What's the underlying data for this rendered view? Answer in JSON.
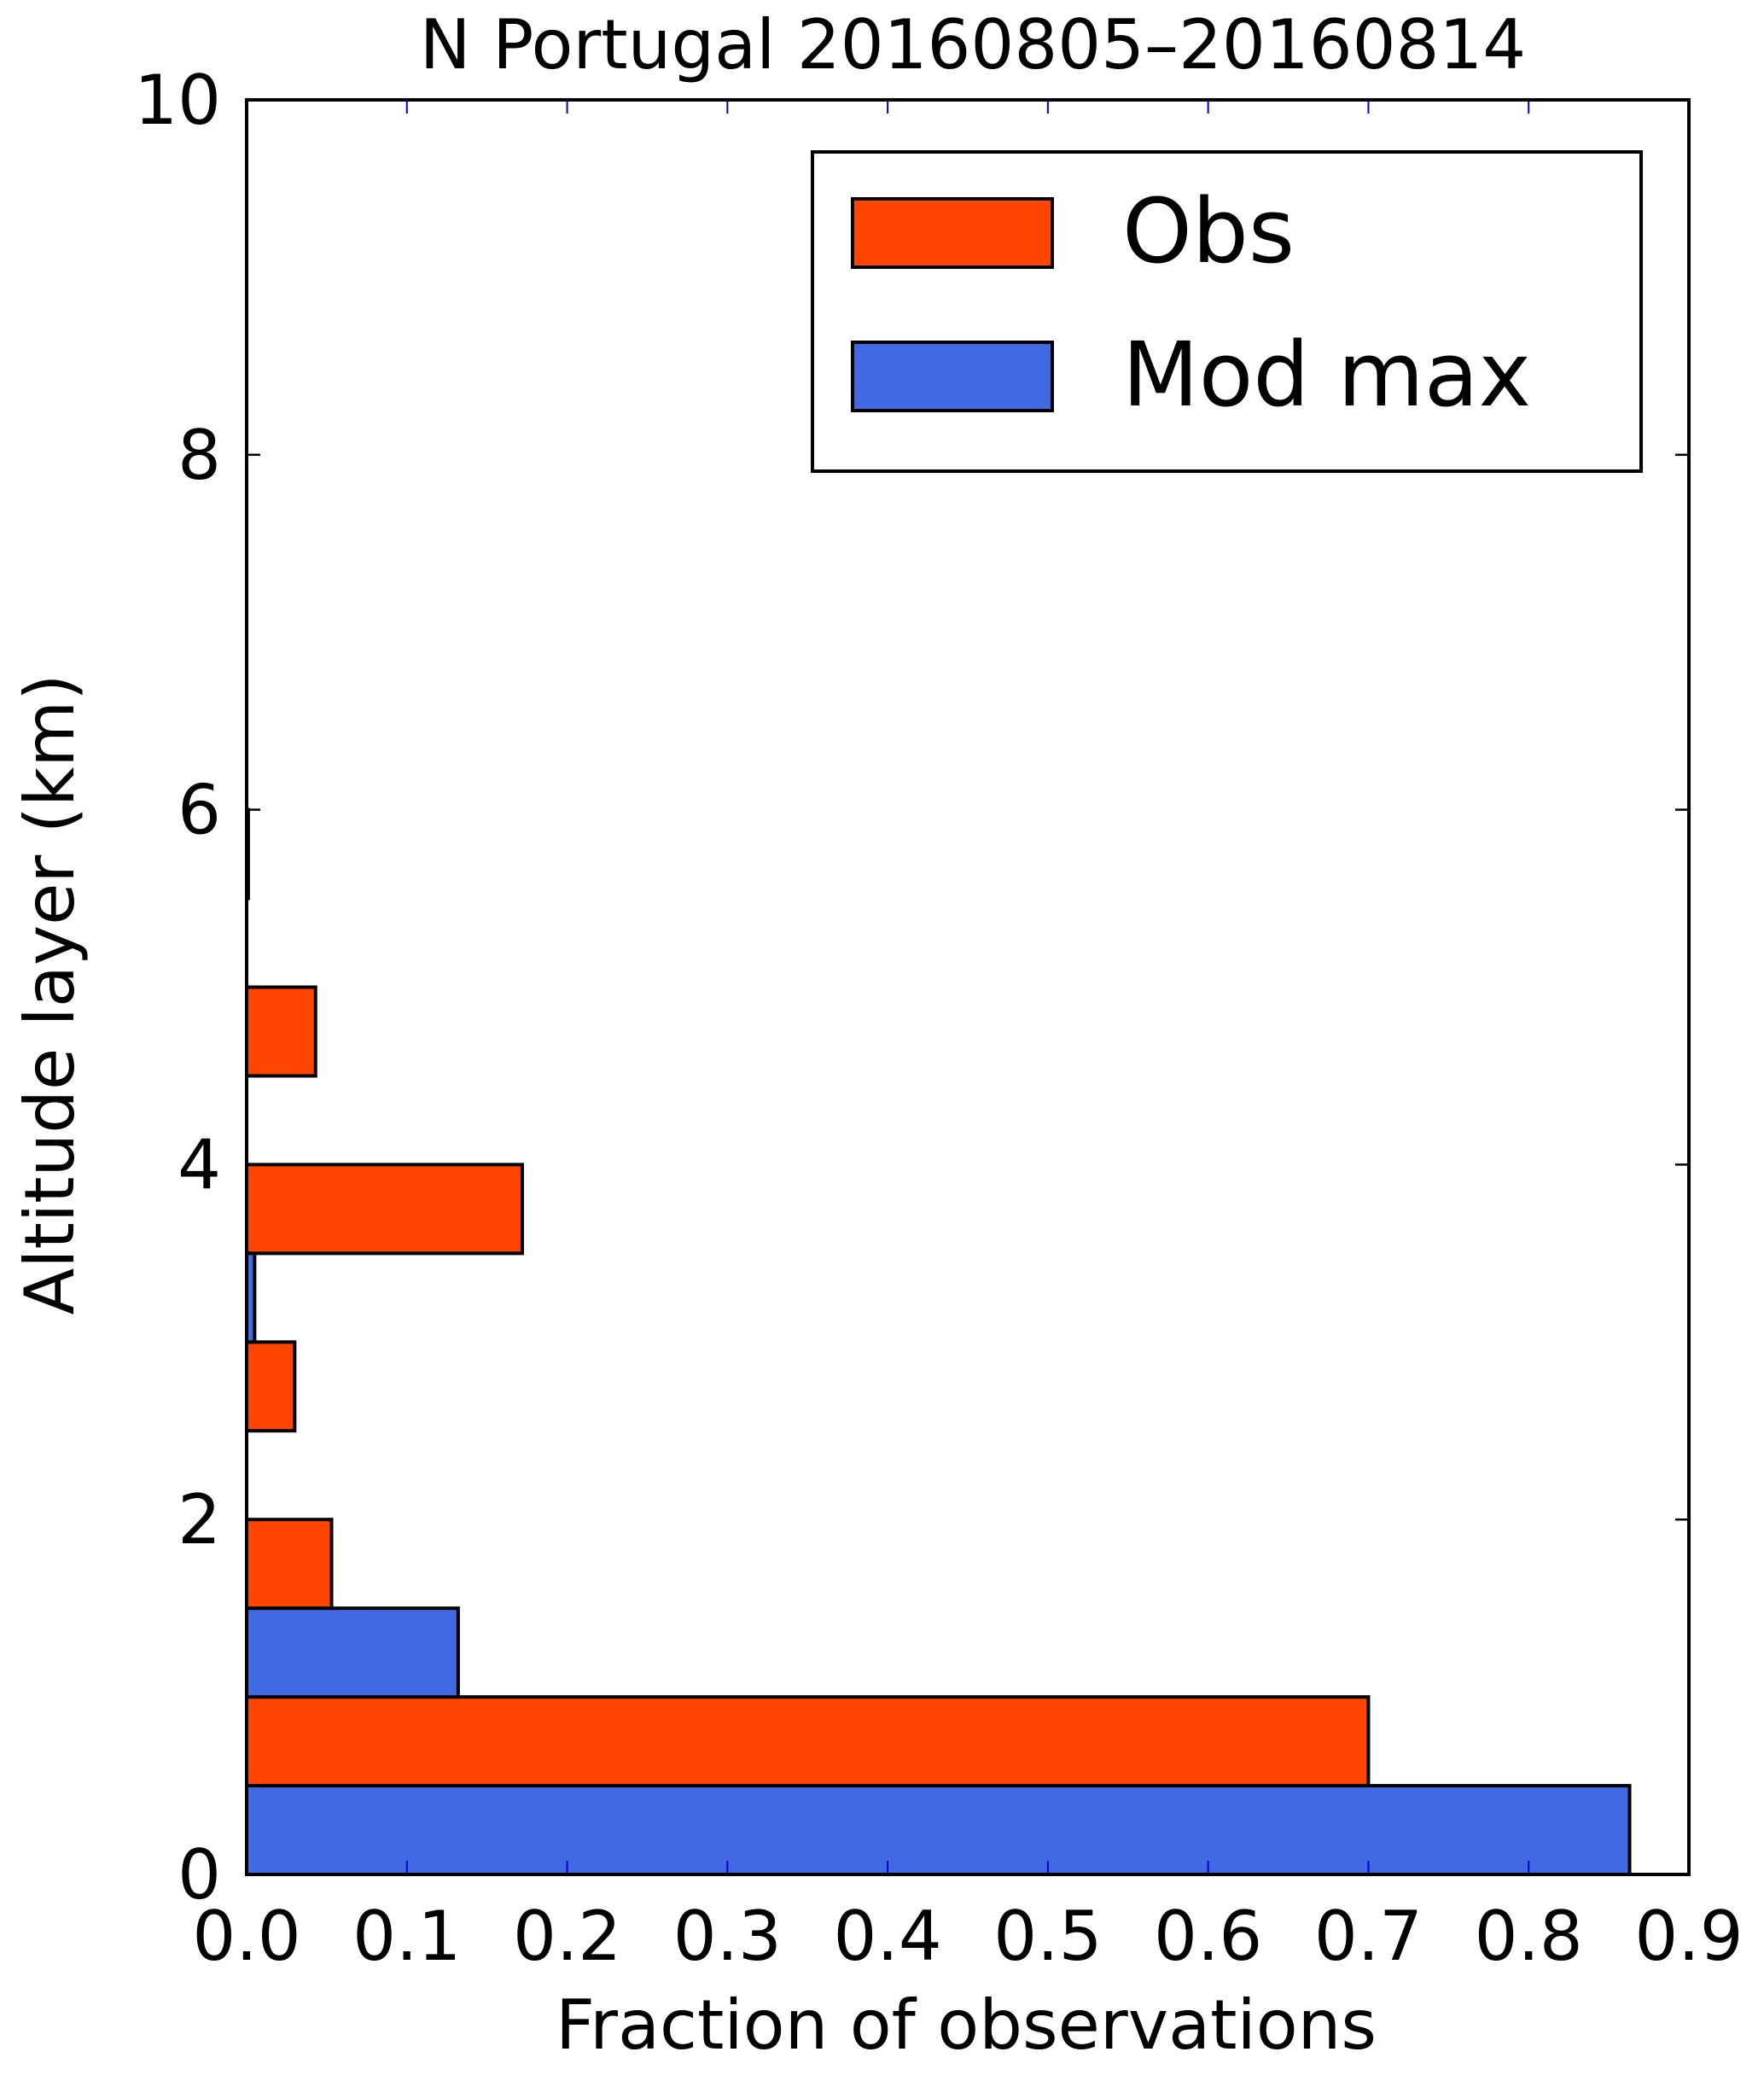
{
  "chart_data": {
    "type": "bar",
    "orientation": "horizontal",
    "title": "N Portugal 20160805–20160814",
    "xlabel": "Fraction of observations",
    "ylabel": "Altitude layer (km)",
    "xlim": [
      0.0,
      0.9
    ],
    "ylim": [
      0,
      10
    ],
    "xticks": [
      "0.0",
      "0.1",
      "0.2",
      "0.3",
      "0.4",
      "0.5",
      "0.6",
      "0.7",
      "0.8",
      "0.9"
    ],
    "yticks": [
      "0",
      "2",
      "4",
      "6",
      "8",
      "10"
    ],
    "bin_width_km": 0.5,
    "series": [
      {
        "name": "Obs",
        "color": "#FF4500",
        "bins": [
          {
            "y_bottom": 0.5,
            "y_top": 1.0,
            "value": 0.7
          },
          {
            "y_bottom": 1.5,
            "y_top": 2.0,
            "value": 0.053
          },
          {
            "y_bottom": 2.5,
            "y_top": 3.0,
            "value": 0.03
          },
          {
            "y_bottom": 3.5,
            "y_top": 4.0,
            "value": 0.172
          },
          {
            "y_bottom": 4.5,
            "y_top": 5.0,
            "value": 0.043
          }
        ]
      },
      {
        "name": "Mod max",
        "color": "#4169E1",
        "bins": [
          {
            "y_bottom": 0.0,
            "y_top": 0.5,
            "value": 0.863
          },
          {
            "y_bottom": 1.0,
            "y_top": 1.5,
            "value": 0.132
          },
          {
            "y_bottom": 3.0,
            "y_top": 3.5,
            "value": 0.005
          },
          {
            "y_bottom": 5.5,
            "y_top": 6.0,
            "value": 0.001
          }
        ]
      }
    ],
    "legend": {
      "position": "top-right",
      "entries": [
        "Obs",
        "Mod max"
      ]
    },
    "grid": false
  }
}
